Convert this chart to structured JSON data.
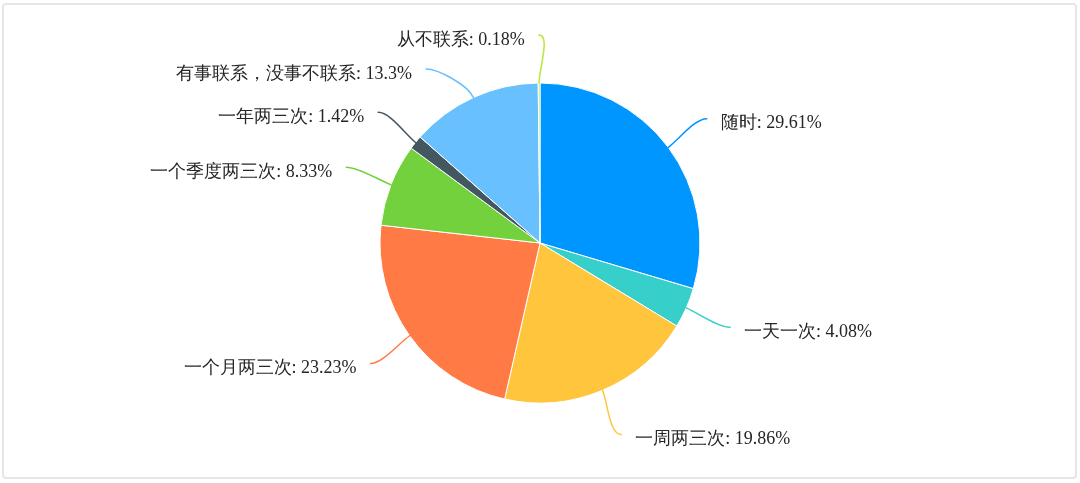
{
  "chart_data": {
    "type": "pie",
    "categories": [
      "随时",
      "一天一次",
      "一周两三次",
      "一个月两三次",
      "一个季度两三次",
      "一年两三次",
      "有事联系，没事不联系",
      "从不联系"
    ],
    "values": [
      29.61,
      4.08,
      19.86,
      23.23,
      8.33,
      1.42,
      13.3,
      0.18
    ],
    "colors": [
      "#0096ff",
      "#36cfc9",
      "#ffc53d",
      "#ff7a45",
      "#73d13d",
      "#435761",
      "#69c0ff",
      "#bae637"
    ],
    "value_labels": [
      "29.61%",
      "4.08%",
      "19.86%",
      "23.23%",
      "8.33%",
      "1.42%",
      "13.3%",
      "0.18%"
    ]
  }
}
